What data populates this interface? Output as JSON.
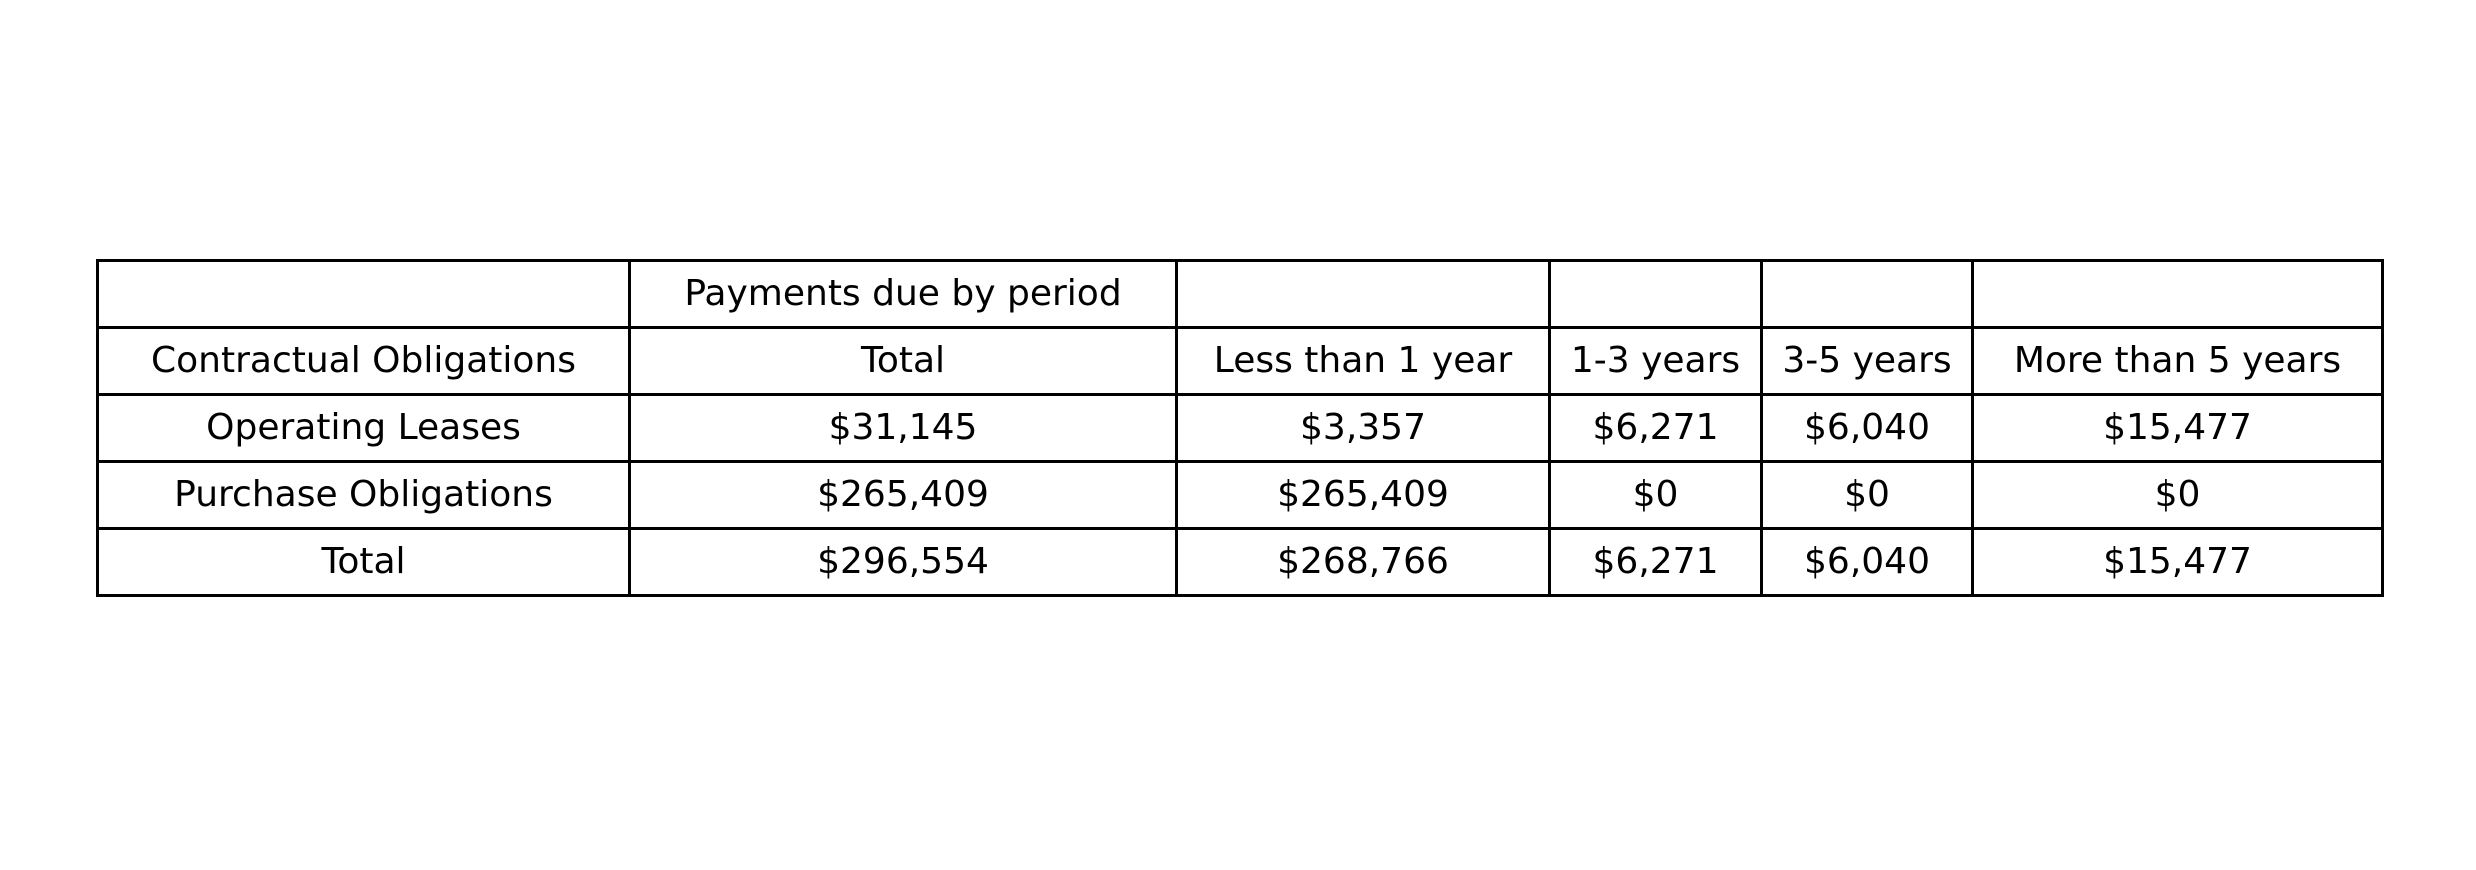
{
  "chart_data": {
    "type": "table",
    "header_rows": [
      [
        "",
        "Payments due by period",
        "",
        "",
        "",
        ""
      ],
      [
        "Contractual Obligations",
        "Total",
        "Less than 1 year",
        "1-3 years",
        "3-5 years",
        "More than 5 years"
      ]
    ],
    "rows": [
      [
        "Operating Leases",
        "$31,145",
        "$3,357",
        "$6,271",
        "$6,040",
        "$15,477"
      ],
      [
        "Purchase Obligations",
        "$265,409",
        "$265,409",
        "$0",
        "$0",
        "$0"
      ],
      [
        "Total",
        "$296,554",
        "$268,766",
        "$6,271",
        "$6,040",
        "$15,477"
      ]
    ]
  }
}
